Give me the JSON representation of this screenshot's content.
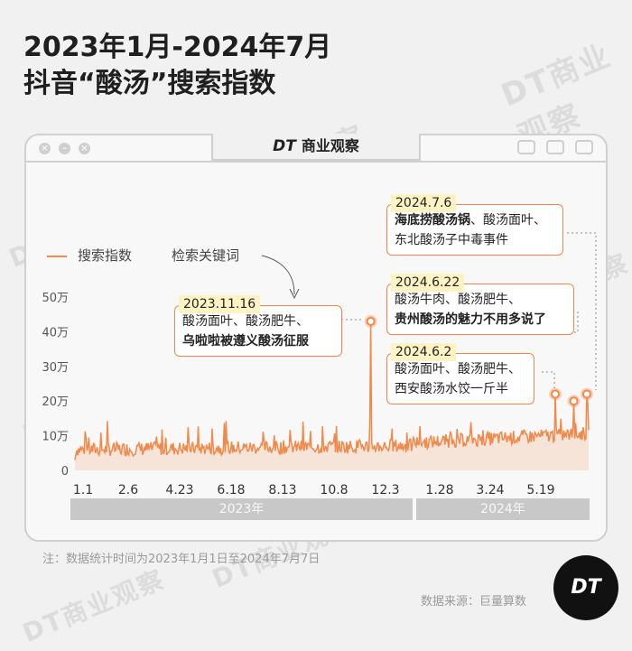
{
  "header": {
    "title_line1": "2023年1月-2024年7月",
    "title_line2": "抖音“酸汤”搜索指数"
  },
  "window": {
    "brand_prefix": "DT",
    "brand_name": "商业观察"
  },
  "legend": {
    "series_label": "搜索指数",
    "keyword_label": "检索关键词"
  },
  "watermark": "DT商业观察",
  "footer": {
    "note": "注：数据统计时间为2023年1月1日至2024年7月7日",
    "source": "数据来源：巨量算数",
    "badge": "DT"
  },
  "colors": {
    "accent": "#f08a4b",
    "callout_border": "#f0864a",
    "date_bg": "#fff3c4",
    "background": "#f1f1f1",
    "year_bar": "#c8c8c8"
  },
  "icons": [
    "close-icon",
    "minimize-icon",
    "maximize-icon",
    "window-btn-icon"
  ],
  "callouts": [
    {
      "date": "2023.11.16",
      "plain": "酸汤面叶、酸汤肥牛、",
      "bold": "乌啦啦被遵义酸汤征服"
    },
    {
      "date": "2024.7.6",
      "bold_first": "海底捞酸汤锅",
      "plain_after": "、酸汤面叶、",
      "line2": "东北酸汤子中毒事件"
    },
    {
      "date": "2024.6.22",
      "plain": "酸汤牛肉、酸汤肥牛、",
      "bold": "贵州酸汤的魅力不用多说了"
    },
    {
      "date": "2024.6.2",
      "plain": "酸汤面叶、酸汤肥牛、",
      "line2": "西安酸汤水饺一斤半"
    }
  ],
  "chart_data": {
    "type": "line",
    "series": [
      {
        "name": "搜索指数",
        "approx_baseline_2023": 70000,
        "approx_baseline_2024": 100000
      }
    ],
    "peaks": [
      {
        "date": "2023.11.16",
        "value": 430000
      },
      {
        "date": "2024.6.2",
        "value": 220000
      },
      {
        "date": "2024.6.22",
        "value": 200000
      },
      {
        "date": "2024.7.6",
        "value": 220000
      }
    ],
    "x_tick_labels": [
      "1.1",
      "2.6",
      "4.23",
      "6.18",
      "8.13",
      "10.8",
      "12.3",
      "1.28",
      "3.24",
      "5.19"
    ],
    "y_tick_labels": [
      "0",
      "10万",
      "20万",
      "30万",
      "40万",
      "50万"
    ],
    "ylim": [
      0,
      500000
    ],
    "years": [
      "2023年",
      "2024年"
    ],
    "grid": true
  }
}
